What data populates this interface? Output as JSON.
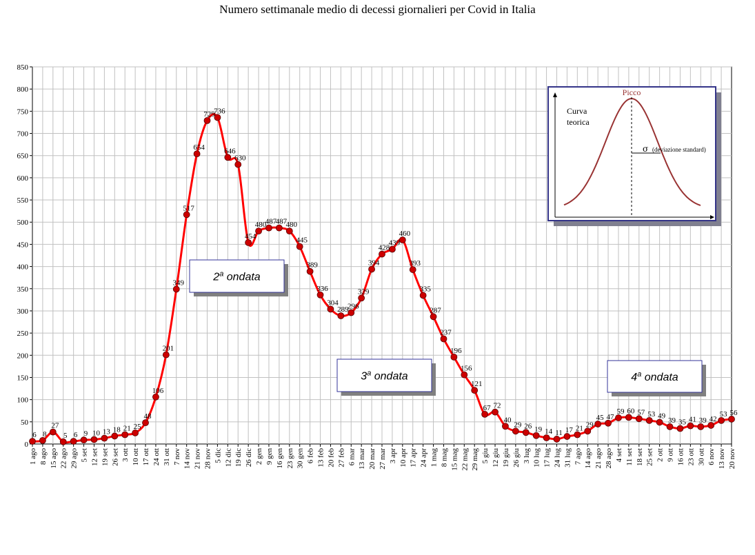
{
  "chart_data": {
    "type": "line",
    "title": "Numero settimanale medio di decessi giornalieri per Covid in Italia",
    "xlabel": "",
    "ylabel": "",
    "ylim": [
      0,
      850
    ],
    "y_ticks": [
      0,
      50,
      100,
      150,
      200,
      250,
      300,
      350,
      400,
      450,
      500,
      550,
      600,
      650,
      700,
      750,
      800,
      850
    ],
    "grid": true,
    "categories": [
      "1 ago",
      "8 ago",
      "15 ago",
      "22 ago",
      "29 ago",
      "5 set",
      "12 set",
      "19 set",
      "26 set",
      "3 ott",
      "10 ott",
      "17 ott",
      "24 ott",
      "31 ott",
      "7 nov",
      "14 nov",
      "21 nov",
      "28 nov",
      "5 dic",
      "12 dic",
      "19 dic",
      "26 dic",
      "2 gen",
      "9 gen",
      "16 gen",
      "23 gen",
      "30 gen",
      "6 feb",
      "13 feb",
      "20 feb",
      "27 feb",
      "6 mar",
      "13 mar",
      "20 mar",
      "27 mar",
      "3 apr",
      "10 apr",
      "17 apr",
      "24 apr",
      "1 mag",
      "8 mag",
      "15 mag",
      "22 mag",
      "29 mag",
      "5 giu",
      "12 giu",
      "19 giu",
      "26 giu",
      "3 lug",
      "10 lug",
      "17 lug",
      "24 lug",
      "31 lug",
      "7 ago",
      "14 ago",
      "21 ago",
      "28 ago",
      "4 set",
      "11 set",
      "18 set",
      "25 set",
      "2 ott",
      "9 ott",
      "16 ott",
      "23 ott",
      "30 ott",
      "6 nov",
      "13 nov",
      "20 nov"
    ],
    "series": [
      {
        "values": [
          6,
          8,
          27,
          5,
          6,
          9,
          10,
          13,
          18,
          21,
          25,
          48,
          106,
          201,
          349,
          517,
          654,
          729,
          736,
          646,
          630,
          454,
          480,
          487,
          487,
          480,
          445,
          389,
          336,
          304,
          289,
          296,
          329,
          394,
          428,
          439,
          460,
          393,
          335,
          287,
          237,
          196,
          156,
          121,
          67,
          72,
          40,
          29,
          26,
          19,
          14,
          11,
          17,
          21,
          29,
          45,
          47,
          59,
          60,
          57,
          53,
          49,
          39,
          35,
          41,
          39,
          42,
          53,
          56
        ],
        "color": "#ff0000",
        "marker_color": "#cc0000"
      }
    ],
    "annotations": [
      {
        "sup": "a",
        "prefix": "2",
        "suffix": " ondata"
      },
      {
        "sup": "a",
        "prefix": "3",
        "suffix": " ondata"
      },
      {
        "sup": "a",
        "prefix": "4",
        "suffix": " ondata"
      }
    ],
    "inset": {
      "peak_label": "Picco",
      "curve_label_line1": "Curva",
      "curve_label_line2": "teorica",
      "sigma_symbol": "σ",
      "sigma_label": "(deviazione standard)"
    }
  }
}
